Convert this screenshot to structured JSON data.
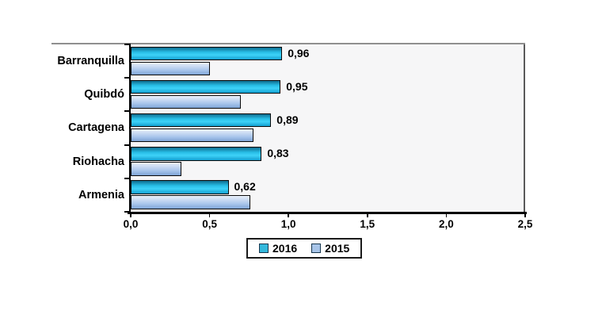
{
  "chart_data": {
    "type": "bar",
    "orientation": "horizontal",
    "title": "",
    "categories": [
      "Barranquilla",
      "Quibdó",
      "Cartagena",
      "Riohacha",
      "Armenia"
    ],
    "series": [
      {
        "name": "2016",
        "values": [
          0.96,
          0.95,
          0.89,
          0.83,
          0.62
        ],
        "data_labels": [
          "0,96",
          "0,95",
          "0,89",
          "0,83",
          "0,62"
        ],
        "color": "#33b8dc",
        "gradient": [
          "#0f6c8e",
          "#27bde6",
          "#3ed2f8",
          "#13a0d1"
        ]
      },
      {
        "name": "2015",
        "values": [
          0.5,
          0.7,
          0.78,
          0.32,
          0.76
        ],
        "data_labels": [],
        "color": "#a7c4e8",
        "gradient": [
          "#eaf1fb",
          "#c3d6f1",
          "#a9c6ec",
          "#7fa5d6"
        ]
      }
    ],
    "xlim": [
      0,
      2.5
    ],
    "x_ticks": [
      {
        "value": 0.0,
        "label": "0,0"
      },
      {
        "value": 0.5,
        "label": "0,5"
      },
      {
        "value": 1.0,
        "label": "1,0"
      },
      {
        "value": 1.5,
        "label": "1,5"
      },
      {
        "value": 2.0,
        "label": "2,0"
      },
      {
        "value": 2.5,
        "label": "2,5"
      }
    ],
    "grid": false,
    "legend_position": "bottom-center",
    "decimal_separator": ","
  },
  "colors": {
    "plot_background": "#f6f6f7",
    "chart_top_border": "#8f8f8f",
    "axis": "#000000",
    "bar_border": "#0b0b0b",
    "label_text": "#000000",
    "legend_border": "#1a1a1a",
    "legend_background": "#ffffff"
  }
}
